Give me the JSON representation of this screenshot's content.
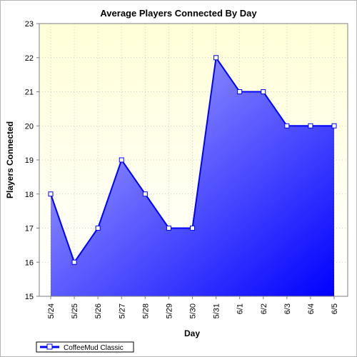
{
  "chart_data": {
    "type": "area",
    "title": "Average Players Connected By Day",
    "xlabel": "Day",
    "ylabel": "Players Connected",
    "categories": [
      "5/24",
      "5/25",
      "5/26",
      "5/27",
      "5/28",
      "5/29",
      "5/30",
      "5/31",
      "6/1",
      "6/2",
      "6/3",
      "6/4",
      "6/5"
    ],
    "series": [
      {
        "name": "CoffeeMud Classic",
        "values": [
          18,
          16,
          17,
          19,
          18,
          17,
          17,
          22,
          21,
          21,
          20,
          20,
          20
        ]
      }
    ],
    "ylim": [
      15,
      23
    ],
    "yticks": [
      15,
      16,
      17,
      18,
      19,
      20,
      21,
      22,
      23
    ],
    "grid": true,
    "legend_position": "bottom-left",
    "colors": {
      "plot_background_top": "#ffffd8",
      "plot_background_bottom": "#ffffff",
      "area_fill_light": "#b8b8ff",
      "area_fill_dark": "#0000ff",
      "line": "#0000ff",
      "marker_fill": "#ffffff",
      "grid": "#cccccc"
    }
  }
}
